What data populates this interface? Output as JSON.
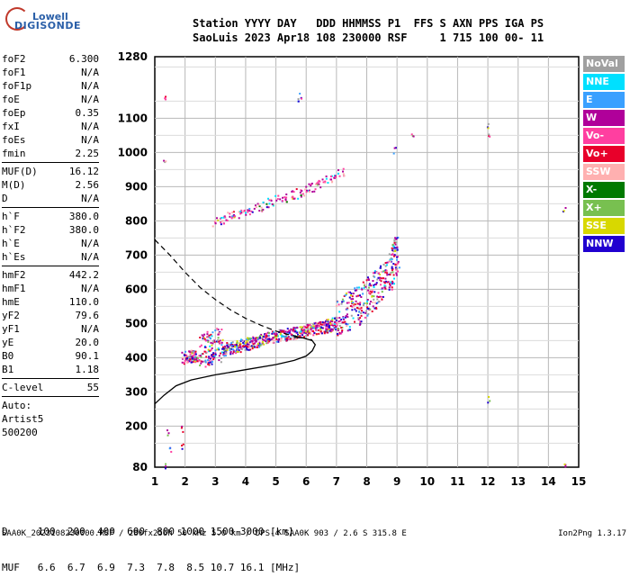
{
  "logo": {
    "line1": "Lowell",
    "line2": "DIGISONDE"
  },
  "header": {
    "line1": "Station YYYY DAY   DDD HHMMSS P1  FFS S AXN PPS IGA PS",
    "line2": "SaoLuis 2023 Apr18 108 230000 RSF     1 715 100 00- 11"
  },
  "params": {
    "group1": [
      {
        "label": "foF2",
        "value": "6.300"
      },
      {
        "label": "foF1",
        "value": "N/A"
      },
      {
        "label": "foF1p",
        "value": "N/A"
      },
      {
        "label": "foE",
        "value": "N/A"
      },
      {
        "label": "foEp",
        "value": "0.35"
      },
      {
        "label": "fxI",
        "value": "N/A"
      },
      {
        "label": "foEs",
        "value": "N/A"
      },
      {
        "label": "fmin",
        "value": "2.25"
      }
    ],
    "group2": [
      {
        "label": "MUF(D)",
        "value": "16.12"
      },
      {
        "label": "M(D)",
        "value": "2.56"
      },
      {
        "label": "D",
        "value": "N/A"
      }
    ],
    "group3": [
      {
        "label": "h`F",
        "value": "380.0"
      },
      {
        "label": "h`F2",
        "value": "380.0"
      },
      {
        "label": "h`E",
        "value": "N/A"
      },
      {
        "label": "h`Es",
        "value": "N/A"
      }
    ],
    "group4": [
      {
        "label": "hmF2",
        "value": "442.2"
      },
      {
        "label": "hmF1",
        "value": "N/A"
      },
      {
        "label": "hmE",
        "value": "110.0"
      },
      {
        "label": "yF2",
        "value": "79.6"
      },
      {
        "label": "yF1",
        "value": "N/A"
      },
      {
        "label": "yE",
        "value": "20.0"
      },
      {
        "label": "B0",
        "value": "90.1"
      },
      {
        "label": "B1",
        "value": "1.18"
      }
    ],
    "group5": [
      {
        "label": "C-level",
        "value": "55"
      }
    ],
    "auto_lines": [
      "Auto:",
      "Artist5",
      "500200"
    ]
  },
  "legend": [
    {
      "label": "NoVal",
      "color": "#a0a0a0"
    },
    {
      "label": "NNE",
      "color": "#00e0ff"
    },
    {
      "label": "E",
      "color": "#3aa0ff"
    },
    {
      "label": "W",
      "color": "#b0009a"
    },
    {
      "label": "Vo-",
      "color": "#ff3fa0"
    },
    {
      "label": "Vo+",
      "color": "#e8002a"
    },
    {
      "label": "SSW",
      "color": "#ffb0b0"
    },
    {
      "label": "X-",
      "color": "#007a00"
    },
    {
      "label": "X+",
      "color": "#78c050"
    },
    {
      "label": "SSE",
      "color": "#d8d800"
    },
    {
      "label": "NNW",
      "color": "#2000d0"
    }
  ],
  "muf_table": {
    "d_line": "D     100  200  400  600  800 1000 1500 3000 [km]",
    "muf_line": "MUF   6.6  6.7  6.9  7.3  7.8  8.5 10.7 16.1 [MHz]"
  },
  "footer": {
    "left": "SAA0K_2023108230000.RSF / 280fx256h 50 kHz 5.0 km / DPS-4 SAA0K 903 / 2.6 S 315.8 E",
    "right": "Ion2Png 1.3.17"
  },
  "chart_data": {
    "type": "scatter",
    "xlim": [
      1,
      15
    ],
    "ylim": [
      80,
      1280
    ],
    "x_ticks": [
      1,
      2,
      3,
      4,
      5,
      6,
      7,
      8,
      9,
      10,
      11,
      12,
      13,
      14,
      15
    ],
    "y_ticks": [
      80,
      200,
      300,
      400,
      500,
      600,
      700,
      800,
      900,
      1000,
      1100,
      1280
    ],
    "grid": true,
    "legend_placement": "right",
    "profile_curve": [
      [
        1.0,
        265
      ],
      [
        1.3,
        290
      ],
      [
        1.7,
        318
      ],
      [
        2.2,
        335
      ],
      [
        3.0,
        350
      ],
      [
        4.0,
        365
      ],
      [
        5.0,
        380
      ],
      [
        5.6,
        392
      ],
      [
        6.0,
        405
      ],
      [
        6.2,
        420
      ],
      [
        6.3,
        438
      ],
      [
        6.2,
        450
      ],
      [
        5.9,
        458
      ],
      [
        5.6,
        460
      ]
    ],
    "virtual_height_dashed": [
      [
        1.0,
        745
      ],
      [
        1.5,
        700
      ],
      [
        2.0,
        650
      ],
      [
        2.5,
        605
      ],
      [
        3.0,
        570
      ],
      [
        3.5,
        540
      ],
      [
        4.0,
        515
      ],
      [
        4.5,
        495
      ],
      [
        5.0,
        478
      ],
      [
        5.4,
        468
      ],
      [
        5.8,
        460
      ],
      [
        6.2,
        452
      ]
    ],
    "echo_traces": [
      {
        "name": "F2 o-trace",
        "points": [
          [
            1.9,
            395
          ],
          [
            2.3,
            400
          ],
          [
            2.8,
            410
          ],
          [
            3.3,
            420
          ],
          [
            3.8,
            430
          ],
          [
            4.3,
            440
          ],
          [
            4.8,
            455
          ],
          [
            5.3,
            462
          ],
          [
            5.8,
            470
          ],
          [
            6.3,
            480
          ],
          [
            6.8,
            490
          ],
          [
            7.3,
            510
          ],
          [
            7.8,
            540
          ],
          [
            8.3,
            580
          ],
          [
            8.8,
            640
          ],
          [
            9.0,
            700
          ]
        ]
      },
      {
        "name": "F2 second hop",
        "points": [
          [
            2.9,
            790
          ],
          [
            3.3,
            805
          ],
          [
            3.8,
            815
          ],
          [
            4.3,
            830
          ],
          [
            4.8,
            850
          ],
          [
            5.3,
            865
          ],
          [
            5.8,
            880
          ],
          [
            6.3,
            900
          ],
          [
            6.8,
            920
          ],
          [
            7.3,
            945
          ]
        ]
      },
      {
        "name": "sparse echoes",
        "points": [
          [
            1.3,
            1160
          ],
          [
            1.3,
            975
          ],
          [
            5.7,
            1150
          ],
          [
            5.8,
            1165
          ],
          [
            8.9,
            1010
          ],
          [
            9.5,
            1060
          ],
          [
            12.0,
            1080
          ],
          [
            12.0,
            1050
          ],
          [
            12.0,
            280
          ],
          [
            14.5,
            830
          ],
          [
            1.4,
            180
          ],
          [
            1.9,
            195
          ],
          [
            1.9,
            140
          ],
          [
            1.3,
            85
          ],
          [
            1.5,
            130
          ],
          [
            14.5,
            85
          ]
        ]
      }
    ]
  }
}
